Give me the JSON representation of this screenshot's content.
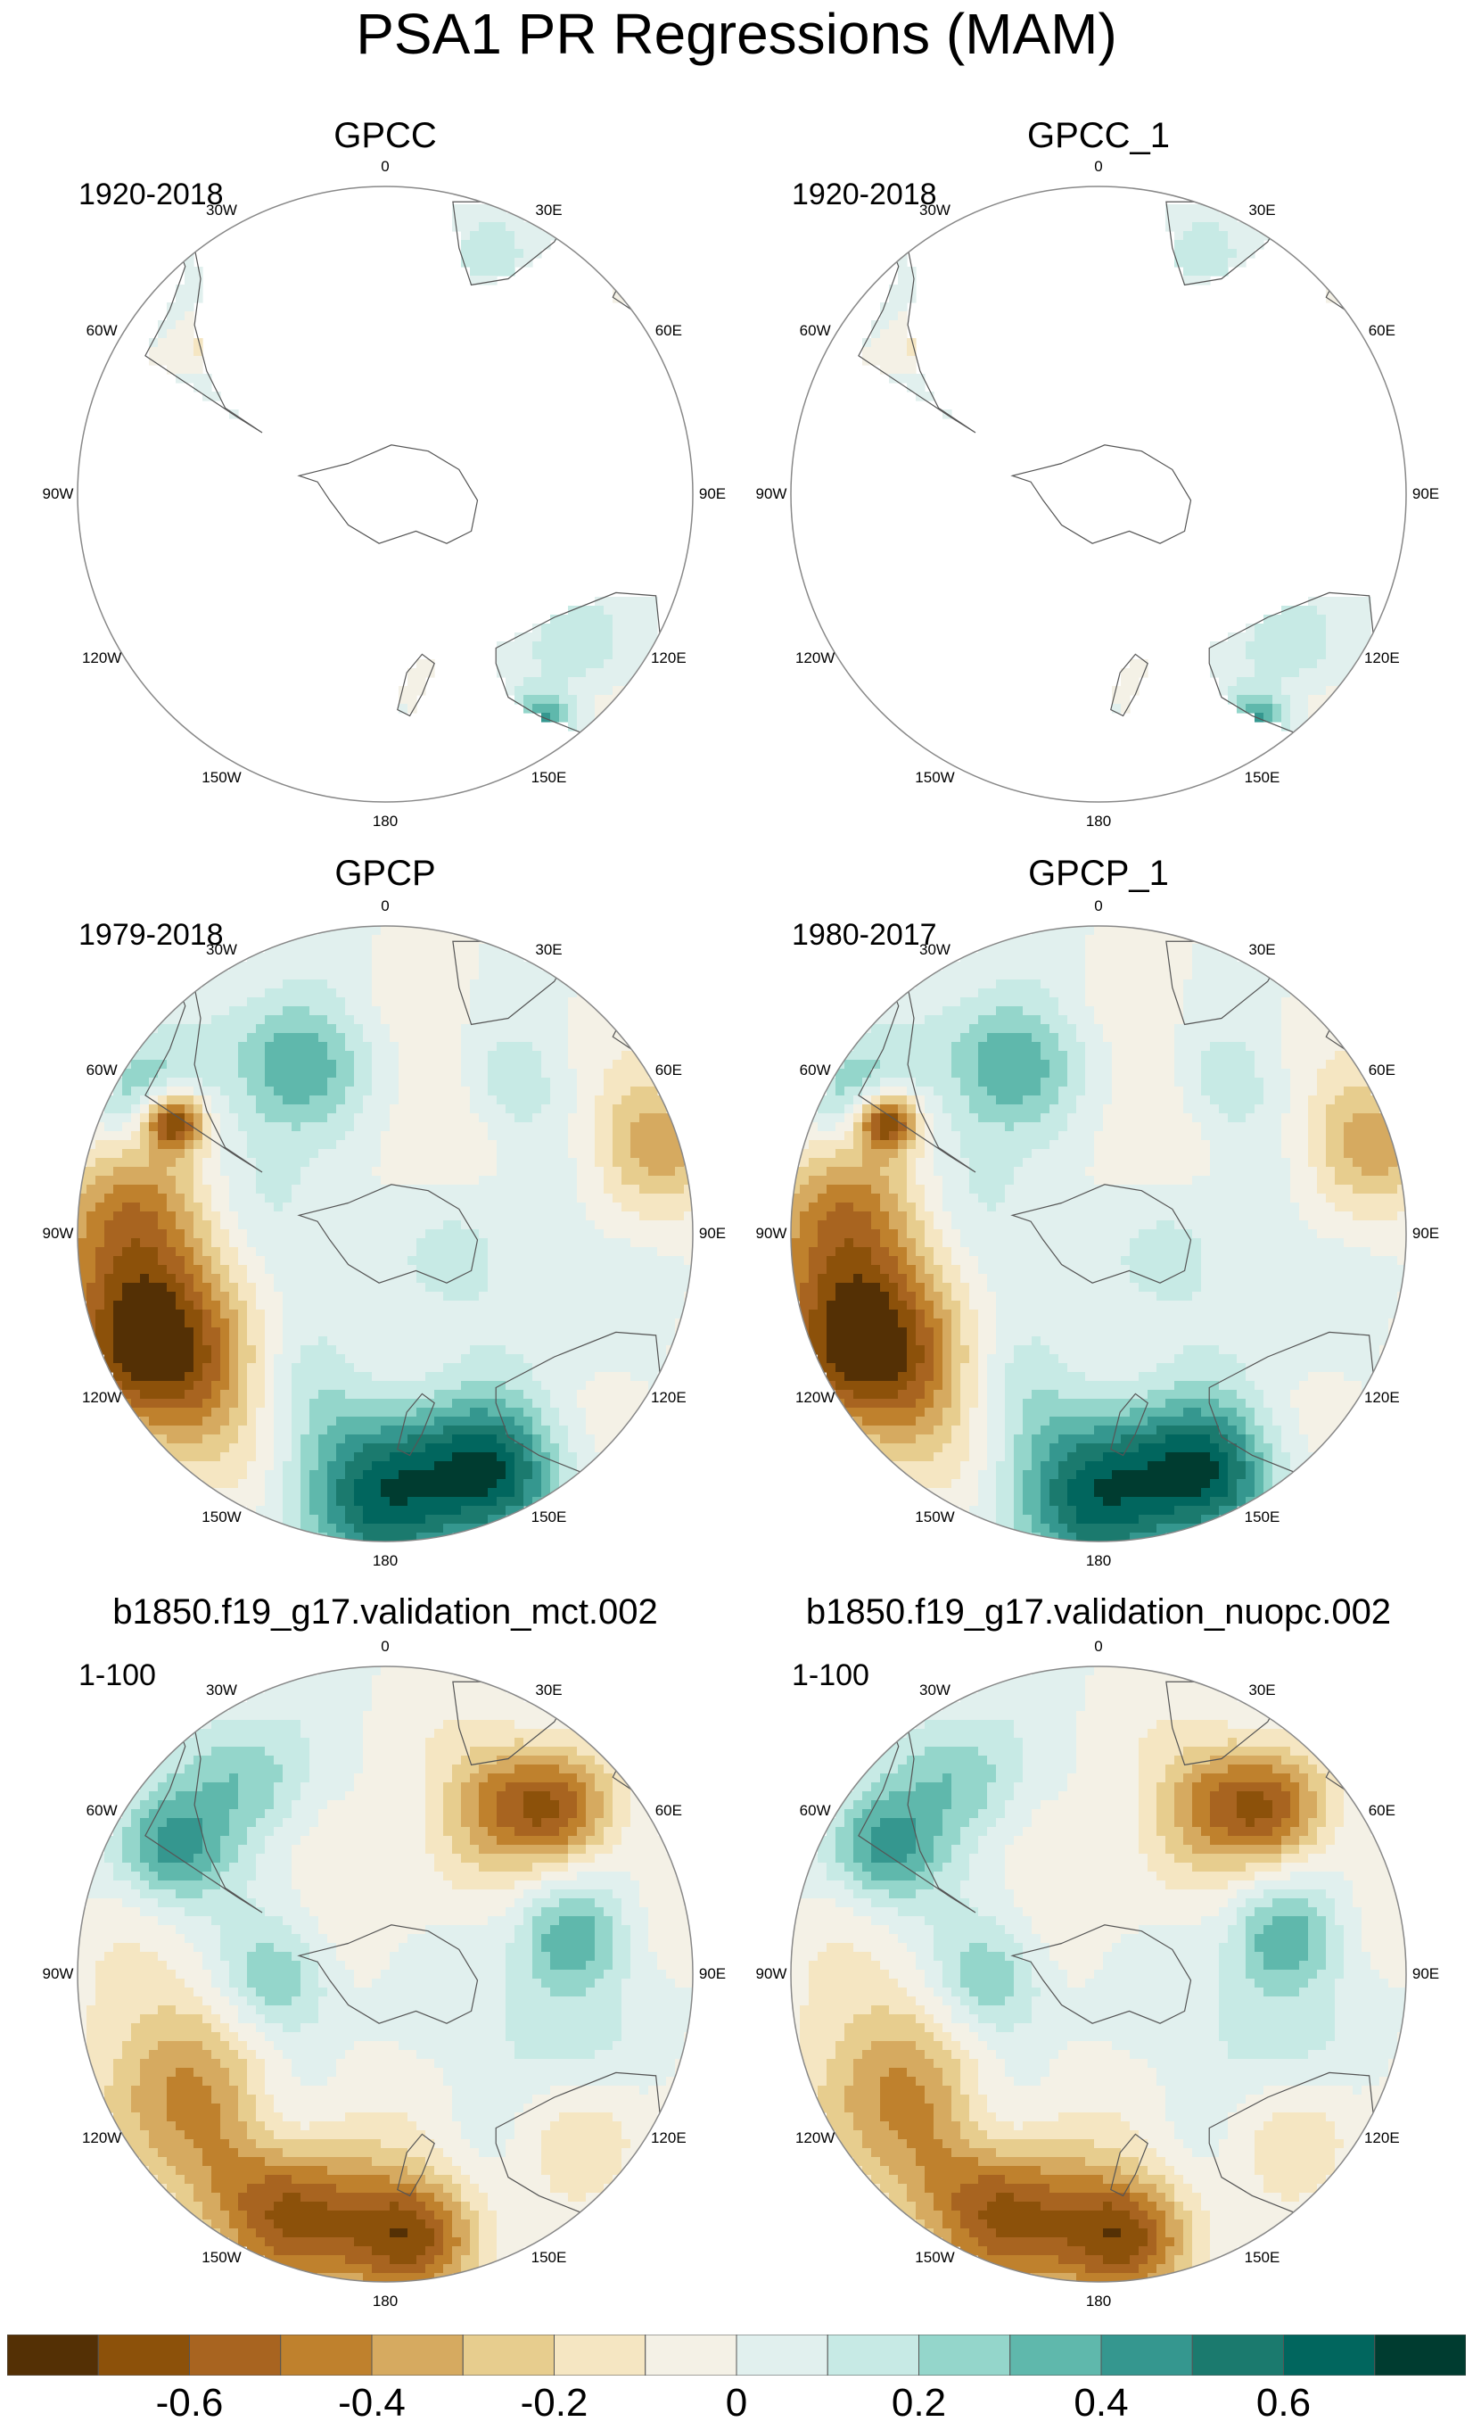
{
  "title": "PSA1 PR Regressions (MAM)",
  "panels": [
    {
      "title": "GPCC",
      "period": "1920-2018",
      "field": "obs_land"
    },
    {
      "title": "GPCC_1",
      "period": "1920-2018",
      "field": "obs_land"
    },
    {
      "title": "GPCP",
      "period": "1979-2018",
      "field": "obs_full"
    },
    {
      "title": "GPCP_1",
      "period": "1980-2017",
      "field": "obs_full"
    },
    {
      "title": "b1850.f19_g17.validation_mct.002",
      "period": "1-100",
      "field": "model"
    },
    {
      "title": "b1850.f19_g17.validation_nuopc.002",
      "period": "1-100",
      "field": "model"
    }
  ],
  "lon_labels": [
    "0",
    "30E",
    "60E",
    "90E",
    "120E",
    "150E",
    "180",
    "150W",
    "120W",
    "90W",
    "60W",
    "30W"
  ],
  "projection": "south-polar stereographic",
  "colorbar": {
    "colors": [
      "#543005",
      "#8c510a",
      "#a86420",
      "#bf812d",
      "#d6aa60",
      "#e7cd8e",
      "#f5e6c2",
      "#f4f1e6",
      "#e1f0ee",
      "#c7eae5",
      "#94d6cb",
      "#5fb8ac",
      "#35978f",
      "#1b7a6e",
      "#01665e",
      "#003c30"
    ],
    "labels": [
      "-0.6",
      "-0.4",
      "-0.2",
      "0",
      "0.2",
      "0.4",
      "0.6"
    ]
  },
  "colors": {
    "land_outline": "#555555",
    "circle_outline": "#888888",
    "background": "#ffffff"
  }
}
